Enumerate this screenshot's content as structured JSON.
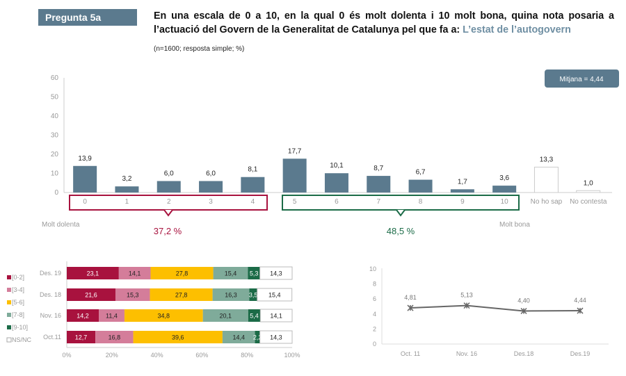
{
  "header": {
    "tag": "Pregunta 5a",
    "question": "En una escala de 0 a 10, en la qual 0 és molt dolenta i 10 molt bona, quina nota posaria a l’actuació del Govern de la Generalitat de Catalunya pel que fa a: ",
    "topic": "L’estat de l’autogovern",
    "note": "(n=1600; resposta simple; %)"
  },
  "colors": {
    "bar": "#5b7a8e",
    "red": "#a8123e",
    "pink": "#d47d9a",
    "yellow": "#fdbf00",
    "lightgreen": "#7fab9a",
    "darkgreen": "#1b6b47"
  },
  "chart_data": [
    {
      "type": "bar",
      "categories": [
        "0",
        "1",
        "2",
        "3",
        "4",
        "5",
        "6",
        "7",
        "8",
        "9",
        "10",
        "No ho sap",
        "No contesta"
      ],
      "values": [
        13.9,
        3.2,
        6.0,
        6.0,
        8.1,
        17.7,
        10.1,
        8.7,
        6.7,
        1.7,
        3.6,
        13.3,
        1.0
      ],
      "labels": [
        "13,9",
        "3,2",
        "6,0",
        "6,0",
        "8,1",
        "17,7",
        "10,1",
        "8,7",
        "6,7",
        "1,7",
        "3,6",
        "13,3",
        "1,0"
      ],
      "ylim": [
        0,
        60
      ],
      "yticks": [
        "0",
        "10",
        "20",
        "30",
        "40",
        "50",
        "60"
      ],
      "mean_label": "Mitjana =  4,44",
      "left_label": "Molt dolenta",
      "right_label": "Molt bona",
      "group_low": "37,2 %",
      "group_high": "48,5 %"
    },
    {
      "type": "bar",
      "stacked": true,
      "orientation": "horizontal",
      "categories": [
        "Des. 19",
        "Des. 18",
        "Nov. 16",
        "Oct.11"
      ],
      "series": [
        {
          "name": "[0-2]",
          "values": [
            23.1,
            21.6,
            14.2,
            12.7
          ],
          "labels": [
            "23,1",
            "21,6",
            "14,2",
            "12,7"
          ]
        },
        {
          "name": "[3-4]",
          "values": [
            14.1,
            15.3,
            11.4,
            16.8
          ],
          "labels": [
            "14,1",
            "15,3",
            "11,4",
            "16,8"
          ]
        },
        {
          "name": "[5-6]",
          "values": [
            27.8,
            27.8,
            34.8,
            39.6
          ],
          "labels": [
            "27,8",
            "27,8",
            "34,8",
            "39,6"
          ]
        },
        {
          "name": "[7-8]",
          "values": [
            15.4,
            16.3,
            20.1,
            14.4
          ],
          "labels": [
            "15,4",
            "16,3",
            "20,1",
            "14,4"
          ]
        },
        {
          "name": "[9-10]",
          "values": [
            5.3,
            3.5,
            5.4,
            2.2
          ],
          "labels": [
            "5,3",
            "3,5",
            "5,4",
            "2,2"
          ]
        },
        {
          "name": "NS/NC",
          "values": [
            14.3,
            15.4,
            14.1,
            14.3
          ],
          "labels": [
            "14,3",
            "15,4",
            "14,1",
            "14,3"
          ]
        }
      ],
      "xticks": [
        "0%",
        "20%",
        "40%",
        "60%",
        "80%",
        "100%"
      ],
      "legend": "left"
    },
    {
      "type": "line",
      "categories": [
        "Oct. 11",
        "Nov. 16",
        "Des.18",
        "Des.19"
      ],
      "values": [
        4.81,
        5.13,
        4.4,
        4.44
      ],
      "labels": [
        "4,81",
        "5,13",
        "4,40",
        "4,44"
      ],
      "ylim": [
        0,
        10
      ],
      "yticks": [
        "0",
        "2",
        "4",
        "6",
        "8",
        "10"
      ]
    }
  ]
}
